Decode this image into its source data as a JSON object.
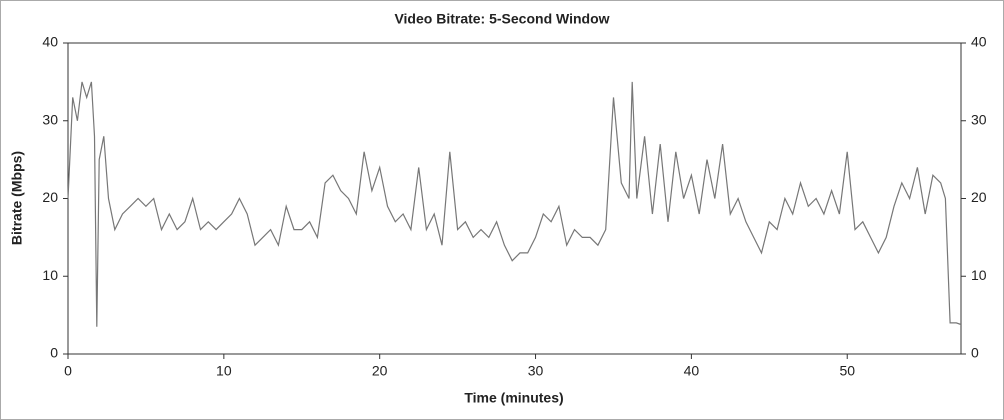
{
  "chart_data": {
    "type": "line",
    "title": "Video Bitrate: 5-Second Window",
    "x_label": "Time (minutes)",
    "y_label": "Bitrate (Mbps)",
    "xlim": [
      0,
      57.3
    ],
    "xticks": [
      0,
      10,
      20,
      30,
      40,
      50
    ],
    "ylim": [
      0,
      40
    ],
    "yticks": [
      0,
      10,
      20,
      30,
      40
    ],
    "y2lim": [
      0,
      40
    ],
    "y2ticks": [
      0,
      10,
      20,
      30,
      40
    ],
    "series": [
      {
        "name": "Bitrate",
        "color": "#777777",
        "x": [
          0,
          0.3,
          0.6,
          0.9,
          1.2,
          1.5,
          1.7,
          1.85,
          2.0,
          2.3,
          2.6,
          3.0,
          3.5,
          4,
          4.5,
          5,
          5.5,
          6,
          6.5,
          7,
          7.5,
          8,
          8.5,
          9,
          9.5,
          10,
          10.5,
          11,
          11.5,
          12,
          12.5,
          13,
          13.5,
          14,
          14.5,
          15,
          15.5,
          16,
          16.5,
          17,
          17.5,
          18,
          18.5,
          19,
          19.5,
          20,
          20.5,
          21,
          21.5,
          22,
          22.5,
          23,
          23.5,
          24,
          24.5,
          25,
          25.5,
          26,
          26.5,
          27,
          27.5,
          28,
          28.5,
          29,
          29.5,
          30,
          30.5,
          31,
          31.5,
          32,
          32.5,
          33,
          33.5,
          34,
          34.5,
          35,
          35.5,
          36,
          36.2,
          36.5,
          37,
          37.5,
          38,
          38.5,
          39,
          39.5,
          40,
          40.5,
          41,
          41.5,
          42,
          42.5,
          43,
          43.5,
          44,
          44.5,
          45,
          45.5,
          46,
          46.5,
          47,
          47.5,
          48,
          48.5,
          49,
          49.5,
          50,
          50.5,
          51,
          51.5,
          52,
          52.5,
          53,
          53.5,
          54,
          54.5,
          55,
          55.5,
          56,
          56.3,
          56.6,
          57,
          57.3
        ],
        "values": [
          20,
          33,
          30,
          35,
          33,
          35,
          28,
          3.5,
          25,
          28,
          20,
          16,
          18,
          19,
          20,
          19,
          20,
          16,
          18,
          16,
          17,
          20,
          16,
          17,
          16,
          17,
          18,
          20,
          18,
          14,
          15,
          16,
          14,
          19,
          16,
          16,
          17,
          15,
          22,
          23,
          21,
          20,
          18,
          26,
          21,
          24,
          19,
          17,
          18,
          16,
          24,
          16,
          18,
          14,
          26,
          16,
          17,
          15,
          16,
          15,
          17,
          14,
          12,
          13,
          13,
          15,
          18,
          17,
          19,
          14,
          16,
          15,
          15,
          14,
          16,
          33,
          22,
          20,
          35,
          20,
          28,
          18,
          27,
          17,
          26,
          20,
          23,
          18,
          25,
          20,
          27,
          18,
          20,
          17,
          15,
          13,
          17,
          16,
          20,
          18,
          22,
          19,
          20,
          18,
          21,
          18,
          26,
          16,
          17,
          15,
          13,
          15,
          19,
          22,
          20,
          24,
          18,
          23,
          22,
          20,
          4,
          4,
          3.8
        ]
      }
    ]
  }
}
